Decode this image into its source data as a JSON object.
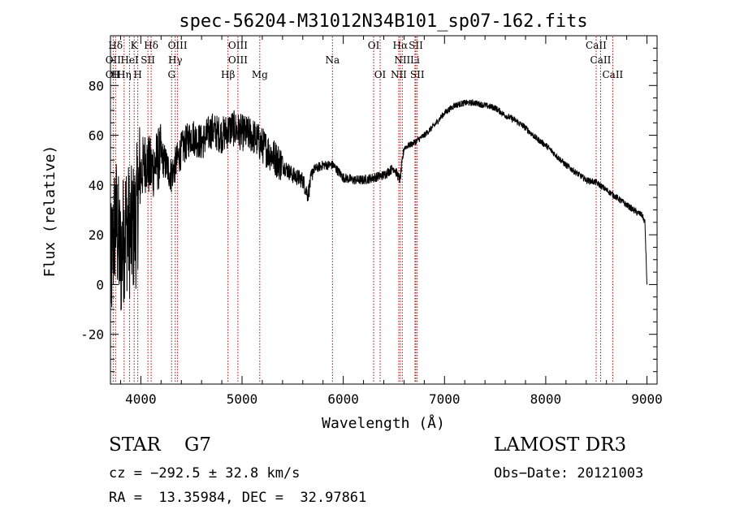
{
  "chart_data": {
    "type": "line",
    "title": "spec-56204-M31012N34B101_sp07-162.fits",
    "xlabel": "Wavelength (Å)",
    "ylabel": "Flux (relative)",
    "xlim": [
      3700,
      9100
    ],
    "ylim": [
      -40,
      100
    ],
    "xticks": [
      4000,
      5000,
      6000,
      7000,
      8000,
      9000
    ],
    "yticks": [
      -20,
      0,
      20,
      40,
      60,
      80
    ],
    "grid": false,
    "spectrum_anchors": {
      "x": [
        3700,
        3750,
        3800,
        3850,
        3900,
        3950,
        4000,
        4050,
        4100,
        4200,
        4300,
        4400,
        4500,
        4600,
        4700,
        4800,
        4900,
        5000,
        5100,
        5200,
        5300,
        5400,
        5500,
        5600,
        5650,
        5700,
        5800,
        5900,
        6000,
        6100,
        6200,
        6300,
        6400,
        6500,
        6560,
        6600,
        6700,
        6800,
        6900,
        7000,
        7100,
        7200,
        7300,
        7400,
        7500,
        7600,
        7700,
        7800,
        7900,
        8000,
        8100,
        8200,
        8300,
        8400,
        8500,
        8600,
        8700,
        8800,
        8900,
        8950,
        8980,
        9000
      ],
      "y": [
        2,
        28,
        10,
        25,
        20,
        25,
        45,
        50,
        46,
        52,
        44,
        54,
        60,
        57,
        62,
        60,
        63,
        61,
        60,
        56,
        52,
        48,
        44,
        42,
        36,
        46,
        48,
        48,
        43,
        42,
        42,
        43,
        44,
        47,
        42,
        55,
        57,
        60,
        64,
        69,
        72,
        73,
        73,
        72,
        71,
        68,
        66,
        63,
        59,
        56,
        52,
        48,
        45,
        42,
        41,
        38,
        35,
        32,
        29,
        28,
        25,
        0
      ]
    },
    "lines": [
      {
        "label": "Hδ",
        "x": 3750,
        "row": 0
      },
      {
        "label": "K",
        "x": 3934,
        "row": 0
      },
      {
        "label": "Hδ",
        "x": 4102,
        "row": 0
      },
      {
        "label": "OIII",
        "x": 4363,
        "row": 0
      },
      {
        "label": "OIII",
        "x": 4959,
        "row": 0
      },
      {
        "label": "OI",
        "x": 6300,
        "row": 0
      },
      {
        "label": "Hα",
        "x": 6563,
        "row": 0
      },
      {
        "label": "SII",
        "x": 6717,
        "row": 0
      },
      {
        "label": "CaII",
        "x": 8498,
        "row": 0
      },
      {
        "label": "OII",
        "x": 3727,
        "row": 1
      },
      {
        "label": "HeI",
        "x": 3889,
        "row": 1
      },
      {
        "label": "SII",
        "x": 4070,
        "row": 1
      },
      {
        "label": "Hγ",
        "x": 4340,
        "row": 1
      },
      {
        "label": "OIII",
        "x": 4959,
        "row": 1
      },
      {
        "label": "Na",
        "x": 5893,
        "row": 1
      },
      {
        "label": "NII",
        "x": 6583,
        "row": 1
      },
      {
        "label": "Li",
        "x": 6708,
        "row": 1
      },
      {
        "label": "CaII",
        "x": 8542,
        "row": 1
      },
      {
        "label": "OII",
        "x": 3727,
        "row": 2
      },
      {
        "label": "H",
        "x": 3750,
        "row": 2
      },
      {
        "label": "Hη",
        "x": 3835,
        "row": 2
      },
      {
        "label": "H",
        "x": 3970,
        "row": 2
      },
      {
        "label": "G",
        "x": 4304,
        "row": 2
      },
      {
        "label": "Hβ",
        "x": 4861,
        "row": 2
      },
      {
        "label": "Mg",
        "x": 5175,
        "row": 2
      },
      {
        "label": "OI",
        "x": 6364,
        "row": 2
      },
      {
        "label": "NII",
        "x": 6548,
        "row": 2
      },
      {
        "label": "SII",
        "x": 6731,
        "row": 2
      },
      {
        "label": "CaII",
        "x": 8662,
        "row": 2
      }
    ],
    "line_color": "#c00000",
    "spectrum_color": "#000000"
  },
  "info": {
    "class": "STAR    G7",
    "survey": "LAMOST DR3",
    "cz": "cz = −292.5 ± 32.8 km/s",
    "obs_date": "Obs−Date: 20121003",
    "radec": "RA =  13.35984, DEC =  32.97861"
  }
}
